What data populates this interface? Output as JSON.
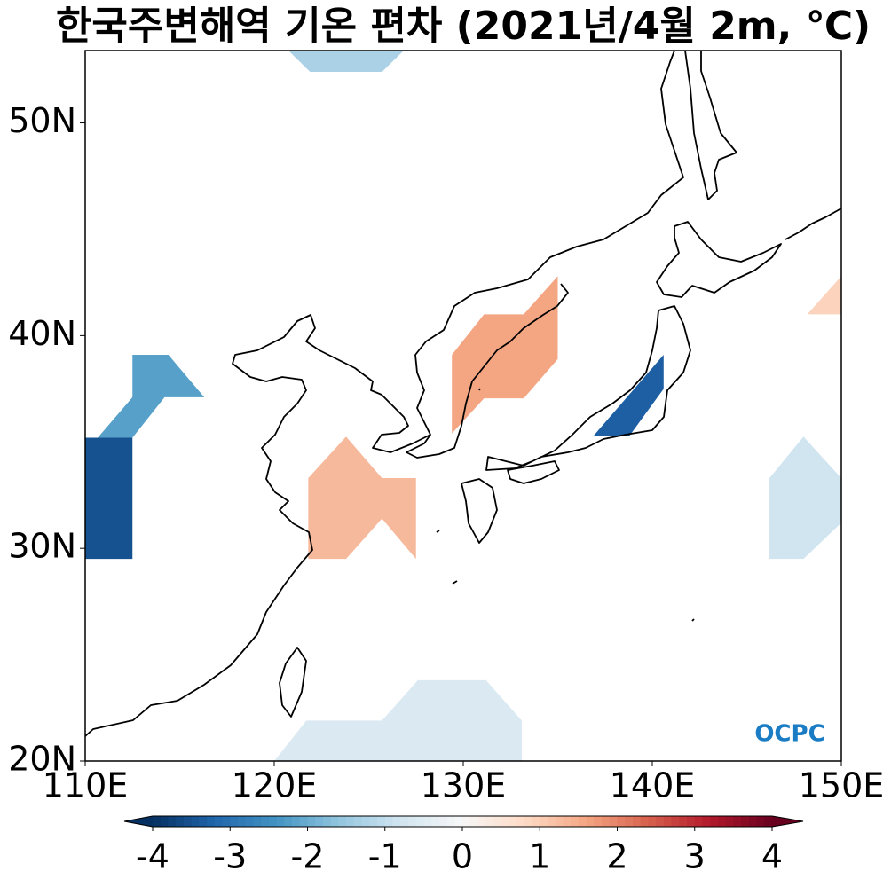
{
  "chart_data": {
    "type": "map",
    "title": "한국주변해역 기온 편차 (2021년/4월 2m, ℃)",
    "xlim": [
      110,
      150
    ],
    "ylim": [
      20,
      53.4
    ],
    "xticks": [
      {
        "value": 110,
        "label": "110E"
      },
      {
        "value": 120,
        "label": "120E"
      },
      {
        "value": 130,
        "label": "130E"
      },
      {
        "value": 140,
        "label": "140E"
      },
      {
        "value": 150,
        "label": "150E"
      }
    ],
    "yticks": [
      {
        "value": 20,
        "label": "20N"
      },
      {
        "value": 30,
        "label": "30N"
      },
      {
        "value": 40,
        "label": "40N"
      },
      {
        "value": 50,
        "label": "50N"
      }
    ],
    "colorbar": {
      "lim": [
        -4,
        4
      ],
      "ticks": [
        -4,
        -3,
        -2,
        -1,
        0,
        1,
        2,
        3,
        4
      ],
      "colormap": "RdBu_r"
    },
    "anomalies": [
      {
        "value": -1.3,
        "lon": [
          120.75,
          121.9,
          125.7,
          126.85
        ],
        "lat": [
          53.4,
          52.4,
          52.4,
          53.4
        ]
      },
      {
        "value": -2.2,
        "lon": [
          110.66,
          112.5,
          112.5,
          114.4,
          116.3,
          114.2,
          112.5,
          110
        ],
        "lat": [
          35.2,
          37.1,
          39.1,
          39.1,
          37.1,
          37.1,
          35.2,
          35.2
        ]
      },
      {
        "value": -3.5,
        "lon": [
          110,
          112.5,
          112.5,
          110
        ],
        "lat": [
          35.2,
          35.2,
          29.5,
          29.5
        ]
      },
      {
        "value": 1.6,
        "lon": [
          129.4,
          129.4,
          131.1,
          133.2,
          135.0,
          135.0,
          133.2,
          131.1,
          129.4
        ],
        "lat": [
          35.4,
          39.1,
          41.0,
          41.0,
          42.8,
          38.9,
          37.05,
          37.05,
          35.4
        ]
      },
      {
        "value": 1.3,
        "lon": [
          121.8,
          123.8,
          125.7,
          127.5,
          127.5,
          125.7,
          123.8,
          121.8
        ],
        "lat": [
          33.3,
          35.25,
          33.3,
          33.3,
          29.5,
          31.4,
          29.5,
          29.5
        ]
      },
      {
        "value": -3.3,
        "lon": [
          136.9,
          140.6,
          140.6,
          138.8
        ],
        "lat": [
          35.3,
          39.1,
          37.5,
          35.3
        ]
      },
      {
        "value": 0.9,
        "lon": [
          148.2,
          150,
          150
        ],
        "lat": [
          41.0,
          42.8,
          41.0
        ]
      },
      {
        "value": -0.8,
        "lon": [
          146.2,
          148.0,
          150,
          150,
          148.0,
          146.2
        ],
        "lat": [
          33.3,
          35.25,
          33.3,
          31.2,
          29.5,
          29.5
        ]
      },
      {
        "value": -0.6,
        "lon": [
          120.0,
          121.7,
          125.7,
          127.6,
          131.2,
          133.1,
          133.1
        ],
        "lat": [
          20,
          21.9,
          21.9,
          23.8,
          23.8,
          21.9,
          20
        ]
      }
    ],
    "logo": "OCPC"
  }
}
